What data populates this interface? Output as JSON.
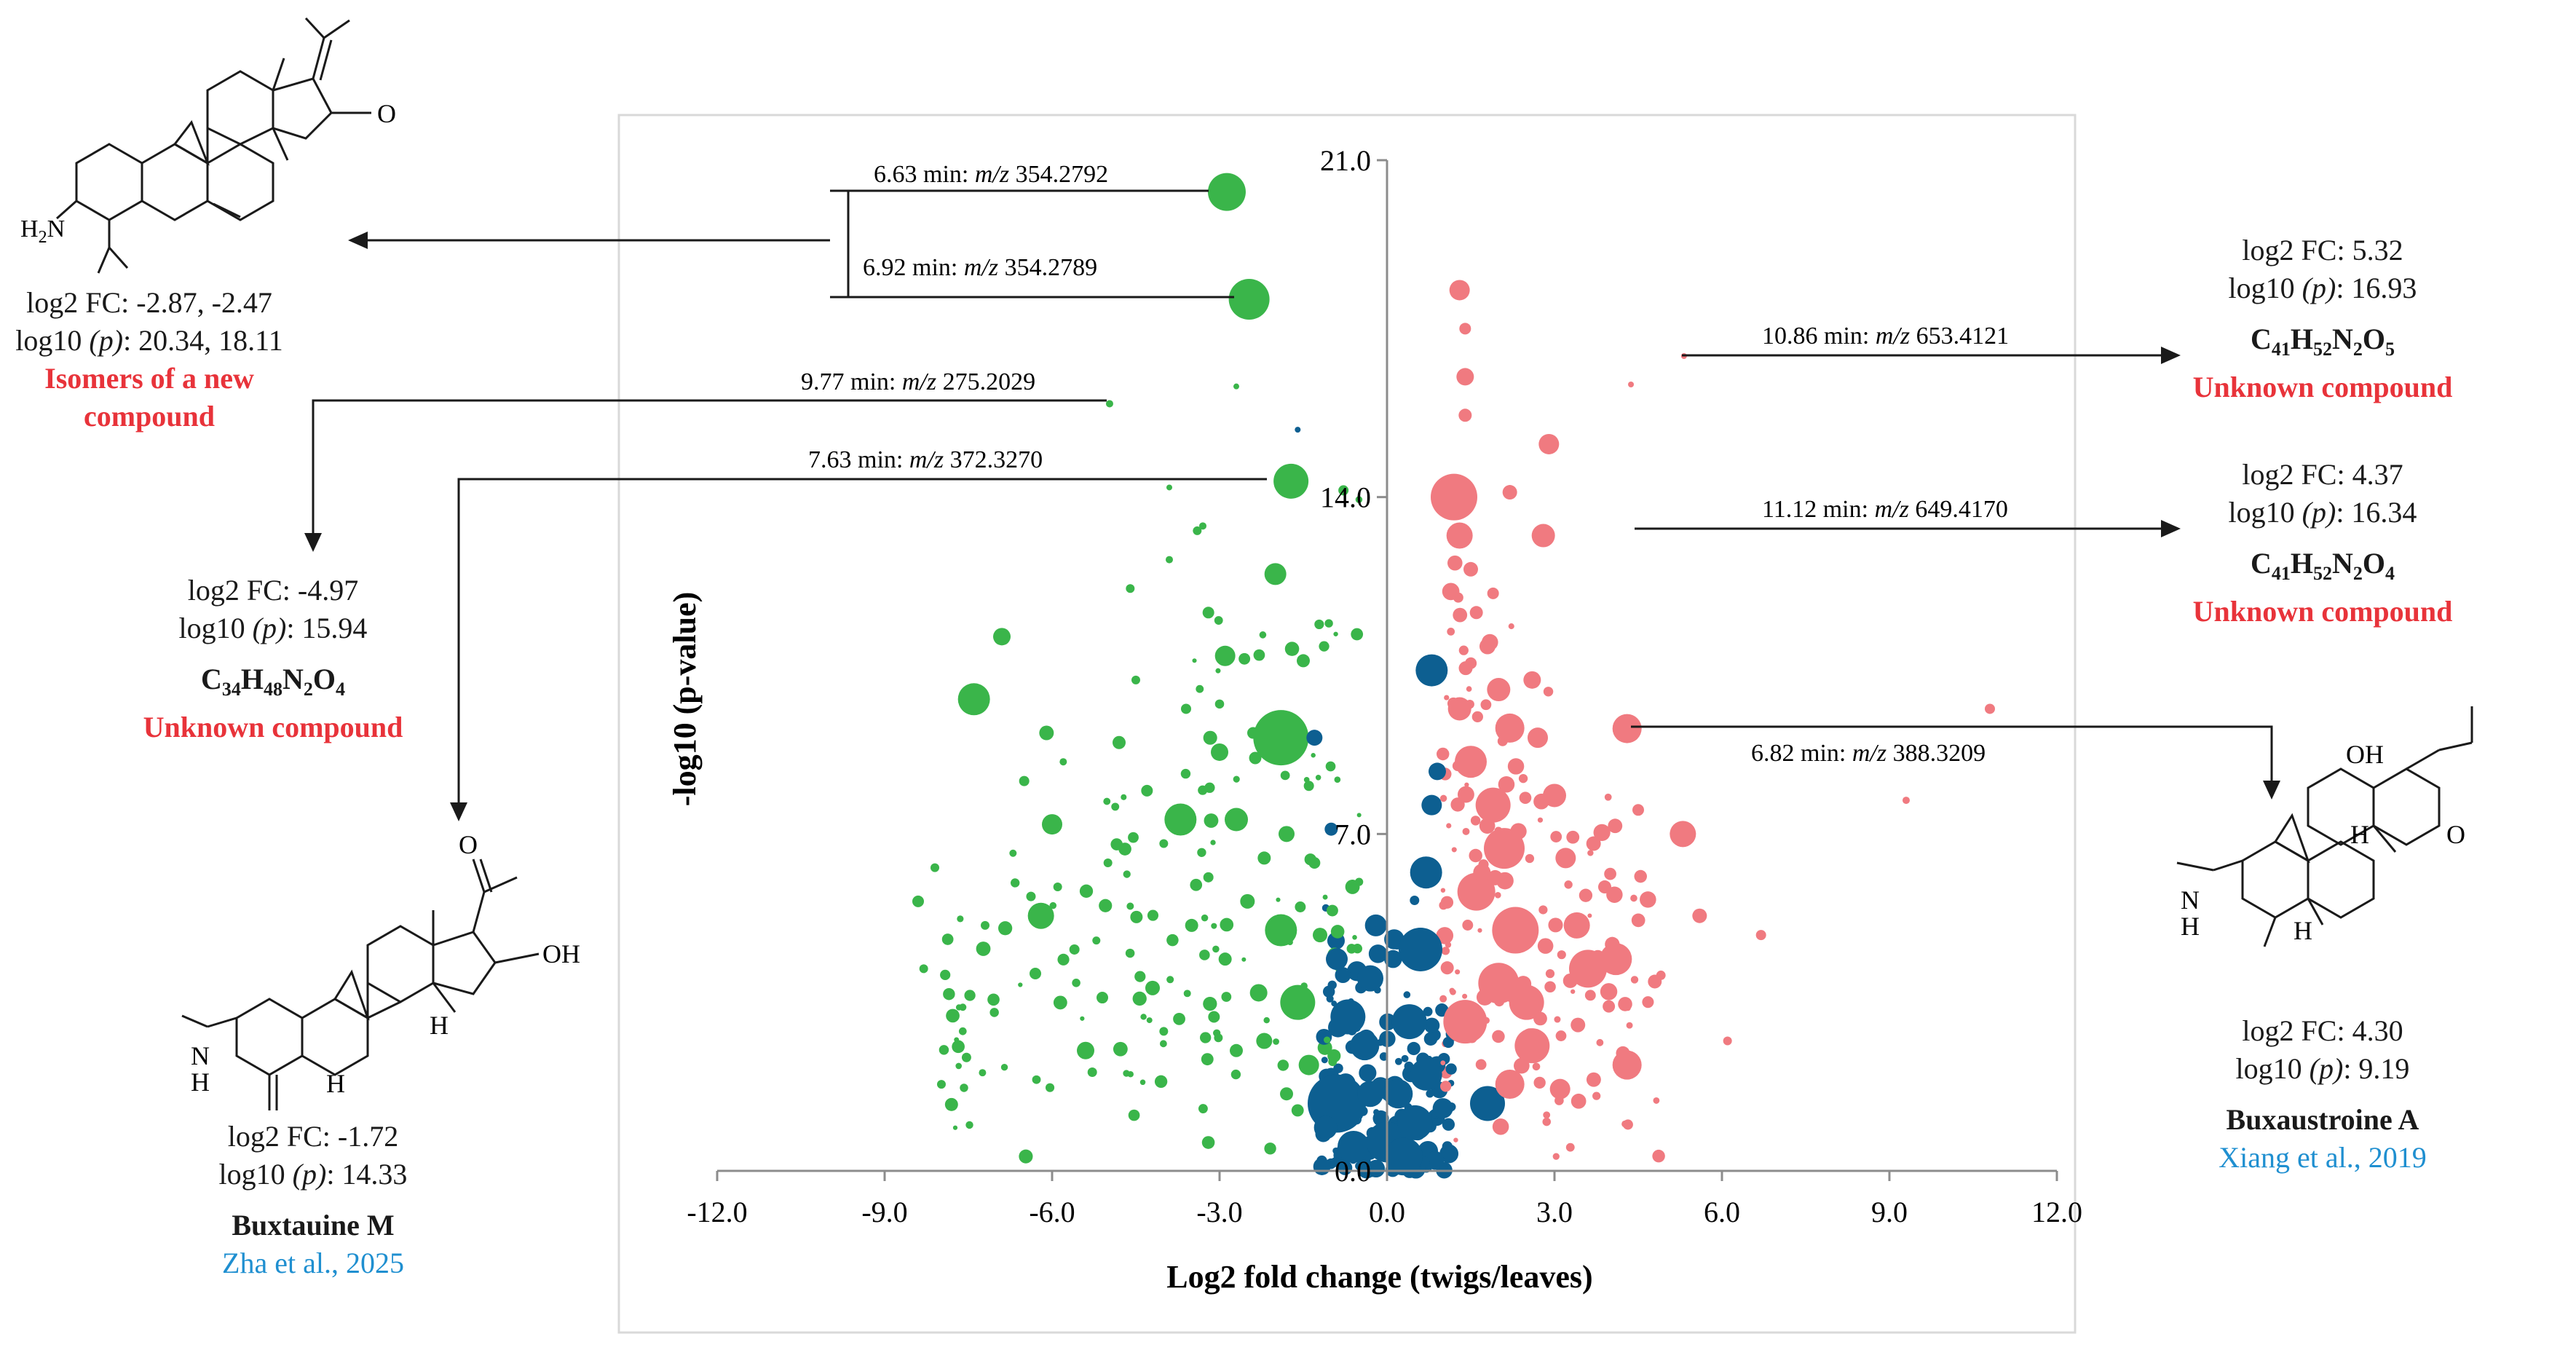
{
  "chart_data": {
    "type": "scatter",
    "title": "",
    "xlabel": "Log2 fold change (twigs/leaves)",
    "ylabel": "-log10 (p-value)",
    "xlim": [
      -12,
      12
    ],
    "ylim": [
      0,
      21
    ],
    "xticks": [
      -12,
      -9,
      -6,
      -3,
      0,
      3,
      6,
      9,
      12
    ],
    "xtick_labels": [
      "-12.0",
      "-9.0",
      "-6.0",
      "-3.0",
      "0.0",
      "3.0",
      "6.0",
      "9.0",
      "12.0"
    ],
    "yticks": [
      0,
      7,
      14,
      21
    ],
    "ytick_labels": [
      "0.0",
      "7.0",
      "14.0",
      "21.0"
    ],
    "colors": {
      "down": "#3ab54a",
      "nonsig": "#0d5f91",
      "up": "#f07a80"
    },
    "highlighted": [
      {
        "label": "6.63 min: m/z 354.2792",
        "x": -2.87,
        "y": 20.34,
        "size": 26,
        "group": "down"
      },
      {
        "label": "6.92 min: m/z 354.2789",
        "x": -2.47,
        "y": 18.11,
        "size": 28,
        "group": "down"
      },
      {
        "label": "9.77 min: m/z 275.2029",
        "x": -4.97,
        "y": 15.94,
        "size": 5,
        "group": "down"
      },
      {
        "label": "7.63 min: m/z 372.3270",
        "x": -1.72,
        "y": 14.33,
        "size": 24,
        "group": "down"
      },
      {
        "label": "10.86 min: m/z 653.4121",
        "x": 5.32,
        "y": 16.93,
        "size": 4,
        "group": "up"
      },
      {
        "label": "11.12 min: m/z 649.4170",
        "x": 4.37,
        "y": 16.34,
        "size": 4,
        "group": "up"
      },
      {
        "label": "6.82 min: m/z 388.3209",
        "x": 4.3,
        "y": 9.19,
        "size": 20,
        "group": "up"
      }
    ],
    "points": [
      [
        -7.4,
        9.8,
        22,
        "down"
      ],
      [
        -8.4,
        5.6,
        8,
        "down"
      ],
      [
        -8.3,
        4.2,
        6,
        "down"
      ],
      [
        -8.1,
        6.3,
        6,
        "down"
      ],
      [
        -7.9,
        4.8,
        5,
        "down"
      ],
      [
        -7.6,
        3.4,
        5,
        "down"
      ],
      [
        -7.2,
        5.1,
        6,
        "down"
      ],
      [
        -6.9,
        11.1,
        12,
        "down"
      ],
      [
        -6.7,
        6.6,
        5,
        "down"
      ],
      [
        -6.5,
        8.1,
        7,
        "down"
      ],
      [
        -6.3,
        4.1,
        8,
        "down"
      ],
      [
        -6.2,
        5.3,
        18,
        "down"
      ],
      [
        -6.0,
        7.2,
        14,
        "down"
      ],
      [
        -6.1,
        9.1,
        10,
        "down"
      ],
      [
        -5.9,
        5.9,
        6,
        "down"
      ],
      [
        -5.6,
        4.6,
        7,
        "down"
      ],
      [
        -5.4,
        2.5,
        12,
        "down"
      ],
      [
        -5.1,
        3.6,
        8,
        "down"
      ],
      [
        -5.0,
        6.4,
        6,
        "down"
      ],
      [
        -4.8,
        8.9,
        9,
        "down"
      ],
      [
        -4.6,
        5.5,
        5,
        "down"
      ],
      [
        -4.5,
        10.2,
        6,
        "down"
      ],
      [
        -4.3,
        7.9,
        8,
        "down"
      ],
      [
        -4.2,
        3.8,
        10,
        "down"
      ],
      [
        -4.0,
        2.9,
        6,
        "down"
      ],
      [
        -3.9,
        12.7,
        5,
        "down"
      ],
      [
        -3.7,
        7.3,
        22,
        "down"
      ],
      [
        -3.6,
        9.6,
        7,
        "down"
      ],
      [
        -3.5,
        5.1,
        9,
        "down"
      ],
      [
        -3.4,
        13.3,
        6,
        "down"
      ],
      [
        -3.2,
        11.6,
        8,
        "down"
      ],
      [
        -3.2,
        6.1,
        7,
        "down"
      ],
      [
        -3.0,
        8.7,
        12,
        "down"
      ],
      [
        -2.9,
        4.4,
        9,
        "down"
      ],
      [
        -2.9,
        10.7,
        14,
        "down"
      ],
      [
        -2.7,
        7.3,
        16,
        "down"
      ],
      [
        -2.7,
        2.5,
        9,
        "down"
      ],
      [
        -2.5,
        5.6,
        10,
        "down"
      ],
      [
        -2.4,
        9.1,
        8,
        "down"
      ],
      [
        -2.3,
        3.7,
        12,
        "down"
      ],
      [
        -2.2,
        6.5,
        9,
        "down"
      ],
      [
        -2.0,
        12.4,
        15,
        "down"
      ],
      [
        -1.9,
        9.0,
        38,
        "down"
      ],
      [
        -1.9,
        5.0,
        22,
        "down"
      ],
      [
        -1.8,
        7.0,
        11,
        "down"
      ],
      [
        -1.6,
        3.5,
        24,
        "down"
      ],
      [
        -1.5,
        10.6,
        9,
        "down"
      ],
      [
        -1.4,
        8.0,
        7,
        "down"
      ],
      [
        -1.3,
        6.4,
        8,
        "down"
      ],
      [
        -1.2,
        4.9,
        10,
        "down"
      ],
      [
        -3.3,
        13.4,
        5,
        "down"
      ],
      [
        -3.9,
        14.2,
        4,
        "down"
      ],
      [
        -2.7,
        16.3,
        4,
        "down"
      ],
      [
        -4.6,
        12.1,
        6,
        "down"
      ],
      [
        -5.8,
        8.5,
        5,
        "down"
      ],
      [
        -4.0,
        6.8,
        6,
        "down"
      ],
      [
        -3.1,
        3.2,
        8,
        "down"
      ],
      [
        -2.2,
        2.7,
        11,
        "down"
      ],
      [
        -1.8,
        1.6,
        9,
        "down"
      ],
      [
        -1.4,
        2.2,
        14,
        "down"
      ],
      [
        -0.9,
        1.4,
        40,
        "nonsig"
      ],
      [
        -0.6,
        0.5,
        22,
        "nonsig"
      ],
      [
        -0.4,
        2.6,
        20,
        "nonsig"
      ],
      [
        -0.3,
        4.0,
        18,
        "nonsig"
      ],
      [
        -0.2,
        5.1,
        15,
        "nonsig"
      ],
      [
        0.0,
        0.6,
        28,
        "nonsig"
      ],
      [
        0.2,
        1.6,
        20,
        "nonsig"
      ],
      [
        0.4,
        3.1,
        24,
        "nonsig"
      ],
      [
        0.6,
        4.6,
        30,
        "nonsig"
      ],
      [
        0.7,
        6.2,
        22,
        "nonsig"
      ],
      [
        0.8,
        7.6,
        14,
        "nonsig"
      ],
      [
        0.8,
        10.4,
        22,
        "nonsig"
      ],
      [
        0.9,
        8.3,
        12,
        "nonsig"
      ],
      [
        0.7,
        2.0,
        22,
        "nonsig"
      ],
      [
        1.0,
        1.3,
        14,
        "nonsig"
      ],
      [
        -1.3,
        9.0,
        11,
        "nonsig"
      ],
      [
        -1.0,
        7.1,
        9,
        "nonsig"
      ],
      [
        -0.9,
        4.4,
        15,
        "nonsig"
      ],
      [
        -0.7,
        3.2,
        24,
        "nonsig"
      ],
      [
        -1.1,
        0.9,
        16,
        "nonsig"
      ],
      [
        0.3,
        0.3,
        26,
        "nonsig"
      ],
      [
        -0.3,
        1.6,
        18,
        "nonsig"
      ],
      [
        1.8,
        1.4,
        24,
        "nonsig"
      ],
      [
        0.5,
        1.0,
        24,
        "nonsig"
      ],
      [
        -1.6,
        15.4,
        4,
        "nonsig"
      ],
      [
        1.3,
        18.3,
        14,
        "up"
      ],
      [
        1.4,
        16.5,
        12,
        "up"
      ],
      [
        1.4,
        15.7,
        9,
        "up"
      ],
      [
        1.2,
        14.0,
        32,
        "up"
      ],
      [
        1.3,
        13.2,
        18,
        "up"
      ],
      [
        1.5,
        12.5,
        10,
        "up"
      ],
      [
        1.6,
        11.6,
        9,
        "up"
      ],
      [
        1.8,
        10.9,
        11,
        "up"
      ],
      [
        2.0,
        10.0,
        16,
        "up"
      ],
      [
        2.2,
        9.2,
        20,
        "up"
      ],
      [
        1.3,
        9.6,
        16,
        "up"
      ],
      [
        1.5,
        8.5,
        22,
        "up"
      ],
      [
        1.9,
        7.6,
        24,
        "up"
      ],
      [
        2.1,
        6.7,
        28,
        "up"
      ],
      [
        1.6,
        5.8,
        26,
        "up"
      ],
      [
        2.3,
        5.0,
        32,
        "up"
      ],
      [
        2.0,
        3.9,
        28,
        "up"
      ],
      [
        1.4,
        3.1,
        30,
        "up"
      ],
      [
        2.6,
        2.6,
        24,
        "up"
      ],
      [
        2.2,
        1.8,
        20,
        "up"
      ],
      [
        3.2,
        6.5,
        14,
        "up"
      ],
      [
        3.4,
        5.1,
        18,
        "up"
      ],
      [
        3.6,
        4.2,
        26,
        "up"
      ],
      [
        4.1,
        4.4,
        22,
        "up"
      ],
      [
        4.3,
        2.2,
        20,
        "up"
      ],
      [
        5.3,
        7.0,
        18,
        "up"
      ],
      [
        5.6,
        5.3,
        10,
        "up"
      ],
      [
        6.1,
        2.7,
        6,
        "up"
      ],
      [
        6.7,
        4.9,
        7,
        "up"
      ],
      [
        10.8,
        9.6,
        7,
        "up"
      ],
      [
        9.3,
        7.7,
        5,
        "up"
      ],
      [
        2.8,
        13.2,
        16,
        "up"
      ],
      [
        2.6,
        10.2,
        12,
        "up"
      ],
      [
        3.0,
        7.8,
        16,
        "up"
      ],
      [
        2.9,
        15.1,
        14,
        "up"
      ],
      [
        1.4,
        17.5,
        8,
        "up"
      ],
      [
        2.2,
        14.1,
        10,
        "up"
      ],
      [
        3.7,
        6.8,
        10,
        "up"
      ],
      [
        1.9,
        12.0,
        8,
        "up"
      ],
      [
        2.5,
        3.5,
        24,
        "up"
      ],
      [
        3.1,
        1.7,
        14,
        "up"
      ],
      [
        4.5,
        7.5,
        8,
        "up"
      ],
      [
        2.7,
        9.0,
        14,
        "up"
      ],
      [
        1.7,
        6.2,
        12,
        "up"
      ],
      [
        3.9,
        5.9,
        9,
        "up"
      ]
    ]
  },
  "callouts": {
    "top_left": {
      "line1": "log2 FC: -2.87, -2.47",
      "line2_prefix": "log10 ",
      "line2_italic": "(p)",
      "line2_suffix": ": 20.34, 18.11",
      "name_line1": "Isomers of a new",
      "name_line2": "compound"
    },
    "mid_left": {
      "line1": "log2 FC: -4.97",
      "line2_prefix": "log10 ",
      "line2_italic": "(p)",
      "line2_suffix": ": 15.94",
      "name": "Unknown compound"
    },
    "bottom_left": {
      "line1": "log2 FC: -1.72",
      "line2_prefix": "log10 ",
      "line2_italic": "(p)",
      "line2_suffix": ": 14.33",
      "name": "Buxtauine M",
      "ref": "Zha  et al., 2025"
    },
    "top_right": {
      "line1": "log2 FC: 5.32",
      "line2_prefix": "log10 ",
      "line2_italic": "(p)",
      "line2_suffix": ": 16.93",
      "name": "Unknown compound"
    },
    "mid_right": {
      "line1": "log2 FC: 4.37",
      "line2_prefix": "log10 ",
      "line2_italic": "(p)",
      "line2_suffix": ": 16.34",
      "name": "Unknown compound"
    },
    "bottom_right": {
      "line1": "log2 FC: 4.30",
      "line2_prefix": "log10 ",
      "line2_italic": "(p)",
      "line2_suffix": ": 9.19",
      "name": "Buxaustroine A",
      "ref": "Xiang  et al., 2019"
    }
  },
  "molecule_labels": {
    "amine": "H2N",
    "ketone": "O",
    "hydroxyl": "OH",
    "hydrogen": "H",
    "nh": "N",
    "nh_h": "H"
  }
}
